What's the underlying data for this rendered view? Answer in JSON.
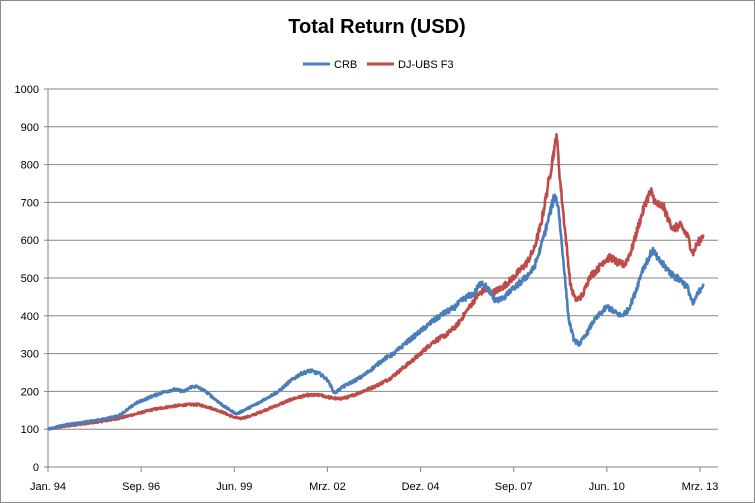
{
  "chart_data": {
    "type": "line",
    "title": "Total Return (USD)",
    "xlabel": "",
    "ylabel": "",
    "ylim": [
      0,
      1000
    ],
    "y_ticks": [
      0,
      100,
      200,
      300,
      400,
      500,
      600,
      700,
      800,
      900,
      1000
    ],
    "x_ticks": [
      "Jan. 94",
      "Sep. 96",
      "Jun. 99",
      "Mrz. 02",
      "Dez. 04",
      "Sep. 07",
      "Jun. 10",
      "Mrz. 13"
    ],
    "x_range": [
      1994.0,
      2013.17
    ],
    "grid": "horizontal",
    "legend_position": "top",
    "series": [
      {
        "name": "CRB",
        "color": "#4a7ebb",
        "points": [
          [
            1994.0,
            100
          ],
          [
            1994.5,
            112
          ],
          [
            1995.0,
            118
          ],
          [
            1995.5,
            125
          ],
          [
            1996.0,
            135
          ],
          [
            1996.25,
            150
          ],
          [
            1996.5,
            168
          ],
          [
            1996.75,
            178
          ],
          [
            1997.0,
            188
          ],
          [
            1997.3,
            198
          ],
          [
            1997.6,
            205
          ],
          [
            1997.9,
            200
          ],
          [
            1998.1,
            212
          ],
          [
            1998.25,
            213
          ],
          [
            1998.5,
            200
          ],
          [
            1998.75,
            182
          ],
          [
            1999.0,
            163
          ],
          [
            1999.25,
            148
          ],
          [
            1999.4,
            140
          ],
          [
            1999.6,
            150
          ],
          [
            2000.0,
            168
          ],
          [
            2000.3,
            185
          ],
          [
            2000.6,
            200
          ],
          [
            2000.9,
            225
          ],
          [
            2001.2,
            245
          ],
          [
            2001.5,
            255
          ],
          [
            2001.8,
            245
          ],
          [
            2002.0,
            230
          ],
          [
            2002.2,
            195
          ],
          [
            2002.4,
            210
          ],
          [
            2002.7,
            225
          ],
          [
            2003.0,
            240
          ],
          [
            2003.3,
            262
          ],
          [
            2003.6,
            285
          ],
          [
            2003.9,
            300
          ],
          [
            2004.2,
            325
          ],
          [
            2004.6,
            355
          ],
          [
            2005.0,
            385
          ],
          [
            2005.3,
            405
          ],
          [
            2005.6,
            420
          ],
          [
            2005.9,
            445
          ],
          [
            2006.2,
            460
          ],
          [
            2006.4,
            490
          ],
          [
            2006.6,
            470
          ],
          [
            2006.8,
            440
          ],
          [
            2007.0,
            445
          ],
          [
            2007.3,
            470
          ],
          [
            2007.6,
            495
          ],
          [
            2007.9,
            525
          ],
          [
            2008.1,
            580
          ],
          [
            2008.3,
            650
          ],
          [
            2008.5,
            720
          ],
          [
            2008.6,
            690
          ],
          [
            2008.75,
            540
          ],
          [
            2008.9,
            390
          ],
          [
            2009.05,
            335
          ],
          [
            2009.2,
            325
          ],
          [
            2009.4,
            350
          ],
          [
            2009.6,
            385
          ],
          [
            2009.8,
            405
          ],
          [
            2010.0,
            425
          ],
          [
            2010.2,
            410
          ],
          [
            2010.4,
            400
          ],
          [
            2010.6,
            415
          ],
          [
            2010.8,
            460
          ],
          [
            2011.0,
            520
          ],
          [
            2011.2,
            555
          ],
          [
            2011.3,
            575
          ],
          [
            2011.45,
            550
          ],
          [
            2011.7,
            525
          ],
          [
            2011.9,
            505
          ],
          [
            2012.1,
            495
          ],
          [
            2012.3,
            475
          ],
          [
            2012.45,
            430
          ],
          [
            2012.55,
            450
          ],
          [
            2012.75,
            485
          ]
        ]
      },
      {
        "name": "DJ-UBS F3",
        "color": "#be4b48",
        "points": [
          [
            1994.0,
            100
          ],
          [
            1994.5,
            108
          ],
          [
            1995.0,
            114
          ],
          [
            1995.5,
            120
          ],
          [
            1996.0,
            128
          ],
          [
            1996.5,
            140
          ],
          [
            1997.0,
            152
          ],
          [
            1997.5,
            160
          ],
          [
            1998.0,
            165
          ],
          [
            1998.3,
            165
          ],
          [
            1998.6,
            158
          ],
          [
            1999.0,
            145
          ],
          [
            1999.3,
            132
          ],
          [
            1999.5,
            128
          ],
          [
            1999.8,
            135
          ],
          [
            2000.2,
            150
          ],
          [
            2000.6,
            165
          ],
          [
            2001.0,
            180
          ],
          [
            2001.4,
            190
          ],
          [
            2001.8,
            190
          ],
          [
            2002.0,
            185
          ],
          [
            2002.3,
            180
          ],
          [
            2002.6,
            185
          ],
          [
            2003.0,
            200
          ],
          [
            2003.4,
            215
          ],
          [
            2003.8,
            235
          ],
          [
            2004.2,
            265
          ],
          [
            2004.6,
            295
          ],
          [
            2005.0,
            330
          ],
          [
            2005.4,
            350
          ],
          [
            2005.7,
            375
          ],
          [
            2006.0,
            415
          ],
          [
            2006.3,
            455
          ],
          [
            2006.5,
            470
          ],
          [
            2006.7,
            460
          ],
          [
            2007.0,
            475
          ],
          [
            2007.3,
            500
          ],
          [
            2007.7,
            540
          ],
          [
            2007.9,
            575
          ],
          [
            2008.1,
            640
          ],
          [
            2008.3,
            740
          ],
          [
            2008.5,
            850
          ],
          [
            2008.55,
            880
          ],
          [
            2008.65,
            760
          ],
          [
            2008.8,
            620
          ],
          [
            2008.95,
            480
          ],
          [
            2009.1,
            440
          ],
          [
            2009.3,
            455
          ],
          [
            2009.5,
            505
          ],
          [
            2009.7,
            520
          ],
          [
            2009.9,
            545
          ],
          [
            2010.1,
            555
          ],
          [
            2010.3,
            540
          ],
          [
            2010.5,
            535
          ],
          [
            2010.7,
            575
          ],
          [
            2010.9,
            640
          ],
          [
            2011.1,
            700
          ],
          [
            2011.25,
            730
          ],
          [
            2011.4,
            695
          ],
          [
            2011.6,
            690
          ],
          [
            2011.75,
            655
          ],
          [
            2011.9,
            630
          ],
          [
            2012.1,
            640
          ],
          [
            2012.3,
            610
          ],
          [
            2012.45,
            565
          ],
          [
            2012.55,
            585
          ],
          [
            2012.75,
            615
          ]
        ]
      }
    ]
  }
}
